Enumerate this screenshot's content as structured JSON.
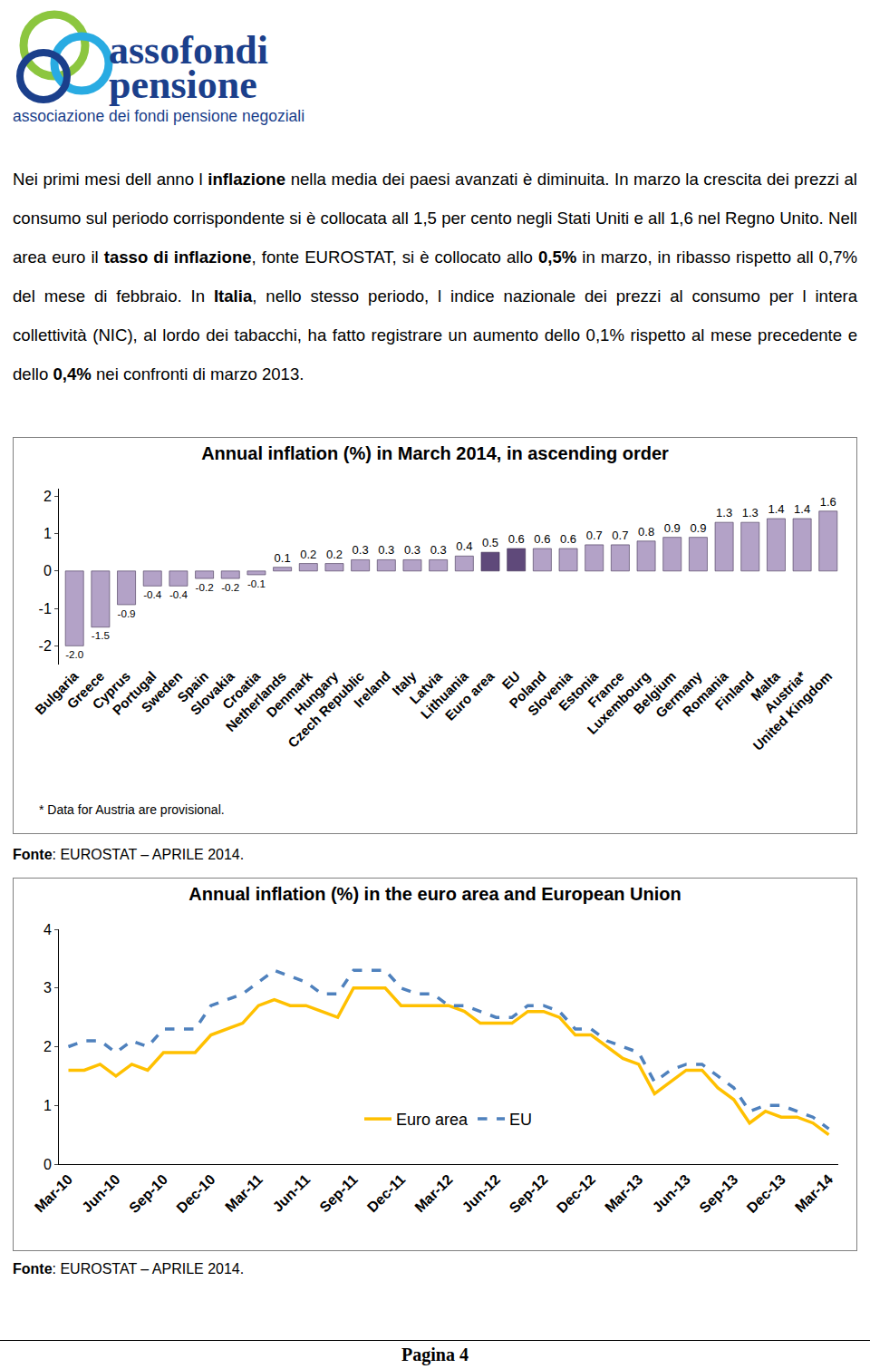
{
  "header": {
    "logo_title_1": "assofondi",
    "logo_title_2": "pensione",
    "logo_subtitle": "associazione dei fondi pensione negoziali"
  },
  "paragraph": [
    {
      "text": "Nei primi mesi dell anno l ",
      "bold": false
    },
    {
      "text": "inflazione",
      "bold": true
    },
    {
      "text": " nella media dei paesi avanzati è diminuita. In marzo la crescita dei prezzi al consumo sul periodo corrispondente si è collocata all 1,5 per cento negli Stati Uniti e all 1,6 nel Regno Unito. Nell area euro il ",
      "bold": false
    },
    {
      "text": "tasso di inflazione",
      "bold": true
    },
    {
      "text": ", fonte EUROSTAT, si è collocato allo ",
      "bold": false
    },
    {
      "text": "0,5%",
      "bold": true
    },
    {
      "text": " in marzo, in ribasso rispetto all 0,7% del mese di febbraio. In ",
      "bold": false
    },
    {
      "text": "Italia",
      "bold": true
    },
    {
      "text": ", nello stesso periodo, l indice nazionale dei prezzi al consumo per l intera collettività (NIC), al lordo dei tabacchi, ha fatto registrare un aumento dello 0,1% rispetto al mese precedente e dello ",
      "bold": false
    },
    {
      "text": "0,4%",
      "bold": true
    },
    {
      "text": " nei confronti di marzo 2013.",
      "bold": false
    }
  ],
  "chart_data": [
    {
      "type": "bar",
      "title": "Annual inflation (%) in March 2014, in ascending order",
      "categories": [
        "Bulgaria",
        "Greece",
        "Cyprus",
        "Portugal",
        "Sweden",
        "Spain",
        "Slovakia",
        "Croatia",
        "Netherlands",
        "Denmark",
        "Hungary",
        "Czech Republic",
        "Ireland",
        "Italy",
        "Latvia",
        "Lithuania",
        "Euro area",
        "EU",
        "Poland",
        "Slovenia",
        "Estonia",
        "France",
        "Luxembourg",
        "Belgium",
        "Germany",
        "Romania",
        "Finland",
        "Malta",
        "Austria*",
        "United Kingdom"
      ],
      "values": [
        -2.0,
        -1.5,
        -0.9,
        -0.4,
        -0.4,
        -0.2,
        -0.2,
        -0.1,
        0.1,
        0.2,
        0.2,
        0.3,
        0.3,
        0.3,
        0.3,
        0.4,
        0.5,
        0.6,
        0.6,
        0.6,
        0.7,
        0.7,
        0.8,
        0.9,
        0.9,
        1.3,
        1.3,
        1.4,
        1.4,
        1.6
      ],
      "value_labels": [
        "-2.0",
        "-1.5",
        "-0.9",
        "-0.4",
        "-0.4",
        "-0.2",
        "-0.2",
        "-0.1",
        "0.1",
        "0.2",
        "0.2",
        "0.3",
        "0.3",
        "0.3",
        "0.3",
        "0.4",
        "0.5",
        "0.6",
        "0.6",
        "0.6",
        "0.7",
        "0.7",
        "0.8",
        "0.9",
        "0.9",
        "1.3",
        "1.3",
        "1.4",
        "1.4",
        "1.6"
      ],
      "colors": [
        "#b3a2c7",
        "#b3a2c7",
        "#b3a2c7",
        "#b3a2c7",
        "#b3a2c7",
        "#b3a2c7",
        "#b3a2c7",
        "#b3a2c7",
        "#b3a2c7",
        "#b3a2c7",
        "#b3a2c7",
        "#b3a2c7",
        "#b3a2c7",
        "#b3a2c7",
        "#b3a2c7",
        "#b3a2c7",
        "#5f497a",
        "#5f497a",
        "#b3a2c7",
        "#b3a2c7",
        "#b3a2c7",
        "#b3a2c7",
        "#b3a2c7",
        "#b3a2c7",
        "#b3a2c7",
        "#b3a2c7",
        "#b3a2c7",
        "#b3a2c7",
        "#b3a2c7",
        "#b3a2c7"
      ],
      "data_labels": true,
      "ylim": [
        -2.5,
        2.2
      ],
      "yticks": [
        -2,
        -1,
        0,
        1,
        2
      ],
      "grid": false,
      "footnote": "* Data for Austria are provisional.",
      "source": {
        "label": "Fonte",
        "text": ": EUROSTAT – APRILE 2014."
      }
    },
    {
      "type": "line",
      "title": "Annual inflation (%) in the euro area and European Union",
      "categories": [
        "Mar-10",
        null,
        null,
        "Jun-10",
        null,
        null,
        "Sep-10",
        null,
        null,
        "Dec-10",
        null,
        null,
        "Mar-11",
        null,
        null,
        "Jun-11",
        null,
        null,
        "Sep-11",
        null,
        null,
        "Dec-11",
        null,
        null,
        "Mar-12",
        null,
        null,
        "Jun-12",
        null,
        null,
        "Sep-12",
        null,
        null,
        "Dec-12",
        null,
        null,
        "Mar-13",
        null,
        null,
        "Jun-13",
        null,
        null,
        "Sep-13",
        null,
        null,
        "Dec-13",
        null,
        null,
        "Mar-14"
      ],
      "series": [
        {
          "name": "Euro area",
          "color": "#ffc000",
          "line_style": "solid",
          "values": [
            1.6,
            1.6,
            1.7,
            1.5,
            1.7,
            1.6,
            1.9,
            1.9,
            1.9,
            2.2,
            2.3,
            2.4,
            2.7,
            2.8,
            2.7,
            2.7,
            2.6,
            2.5,
            3.0,
            3.0,
            3.0,
            2.7,
            2.7,
            2.7,
            2.7,
            2.6,
            2.4,
            2.4,
            2.4,
            2.6,
            2.6,
            2.5,
            2.2,
            2.2,
            2.0,
            1.8,
            1.7,
            1.2,
            1.4,
            1.6,
            1.6,
            1.3,
            1.1,
            0.7,
            0.9,
            0.8,
            0.8,
            0.7,
            0.5
          ]
        },
        {
          "name": "EU",
          "color": "#4f81bd",
          "line_style": "dashed",
          "values": [
            2.0,
            2.1,
            2.1,
            1.9,
            2.1,
            2.0,
            2.3,
            2.3,
            2.3,
            2.7,
            2.8,
            2.9,
            3.1,
            3.3,
            3.2,
            3.1,
            2.9,
            2.9,
            3.3,
            3.3,
            3.3,
            3.0,
            2.9,
            2.9,
            2.7,
            2.7,
            2.6,
            2.5,
            2.5,
            2.7,
            2.7,
            2.6,
            2.3,
            2.3,
            2.1,
            2.0,
            1.9,
            1.4,
            1.6,
            1.7,
            1.7,
            1.5,
            1.3,
            0.9,
            1.0,
            1.0,
            0.9,
            0.8,
            0.6
          ]
        }
      ],
      "ylim": [
        0,
        4
      ],
      "yticks": [
        0,
        1,
        2,
        3,
        4
      ],
      "grid": false,
      "legend": "bottom",
      "source": {
        "label": "Fonte",
        "text": ": EUROSTAT – APRILE 2014."
      }
    }
  ],
  "footer": {
    "page": "Pagina 4"
  }
}
